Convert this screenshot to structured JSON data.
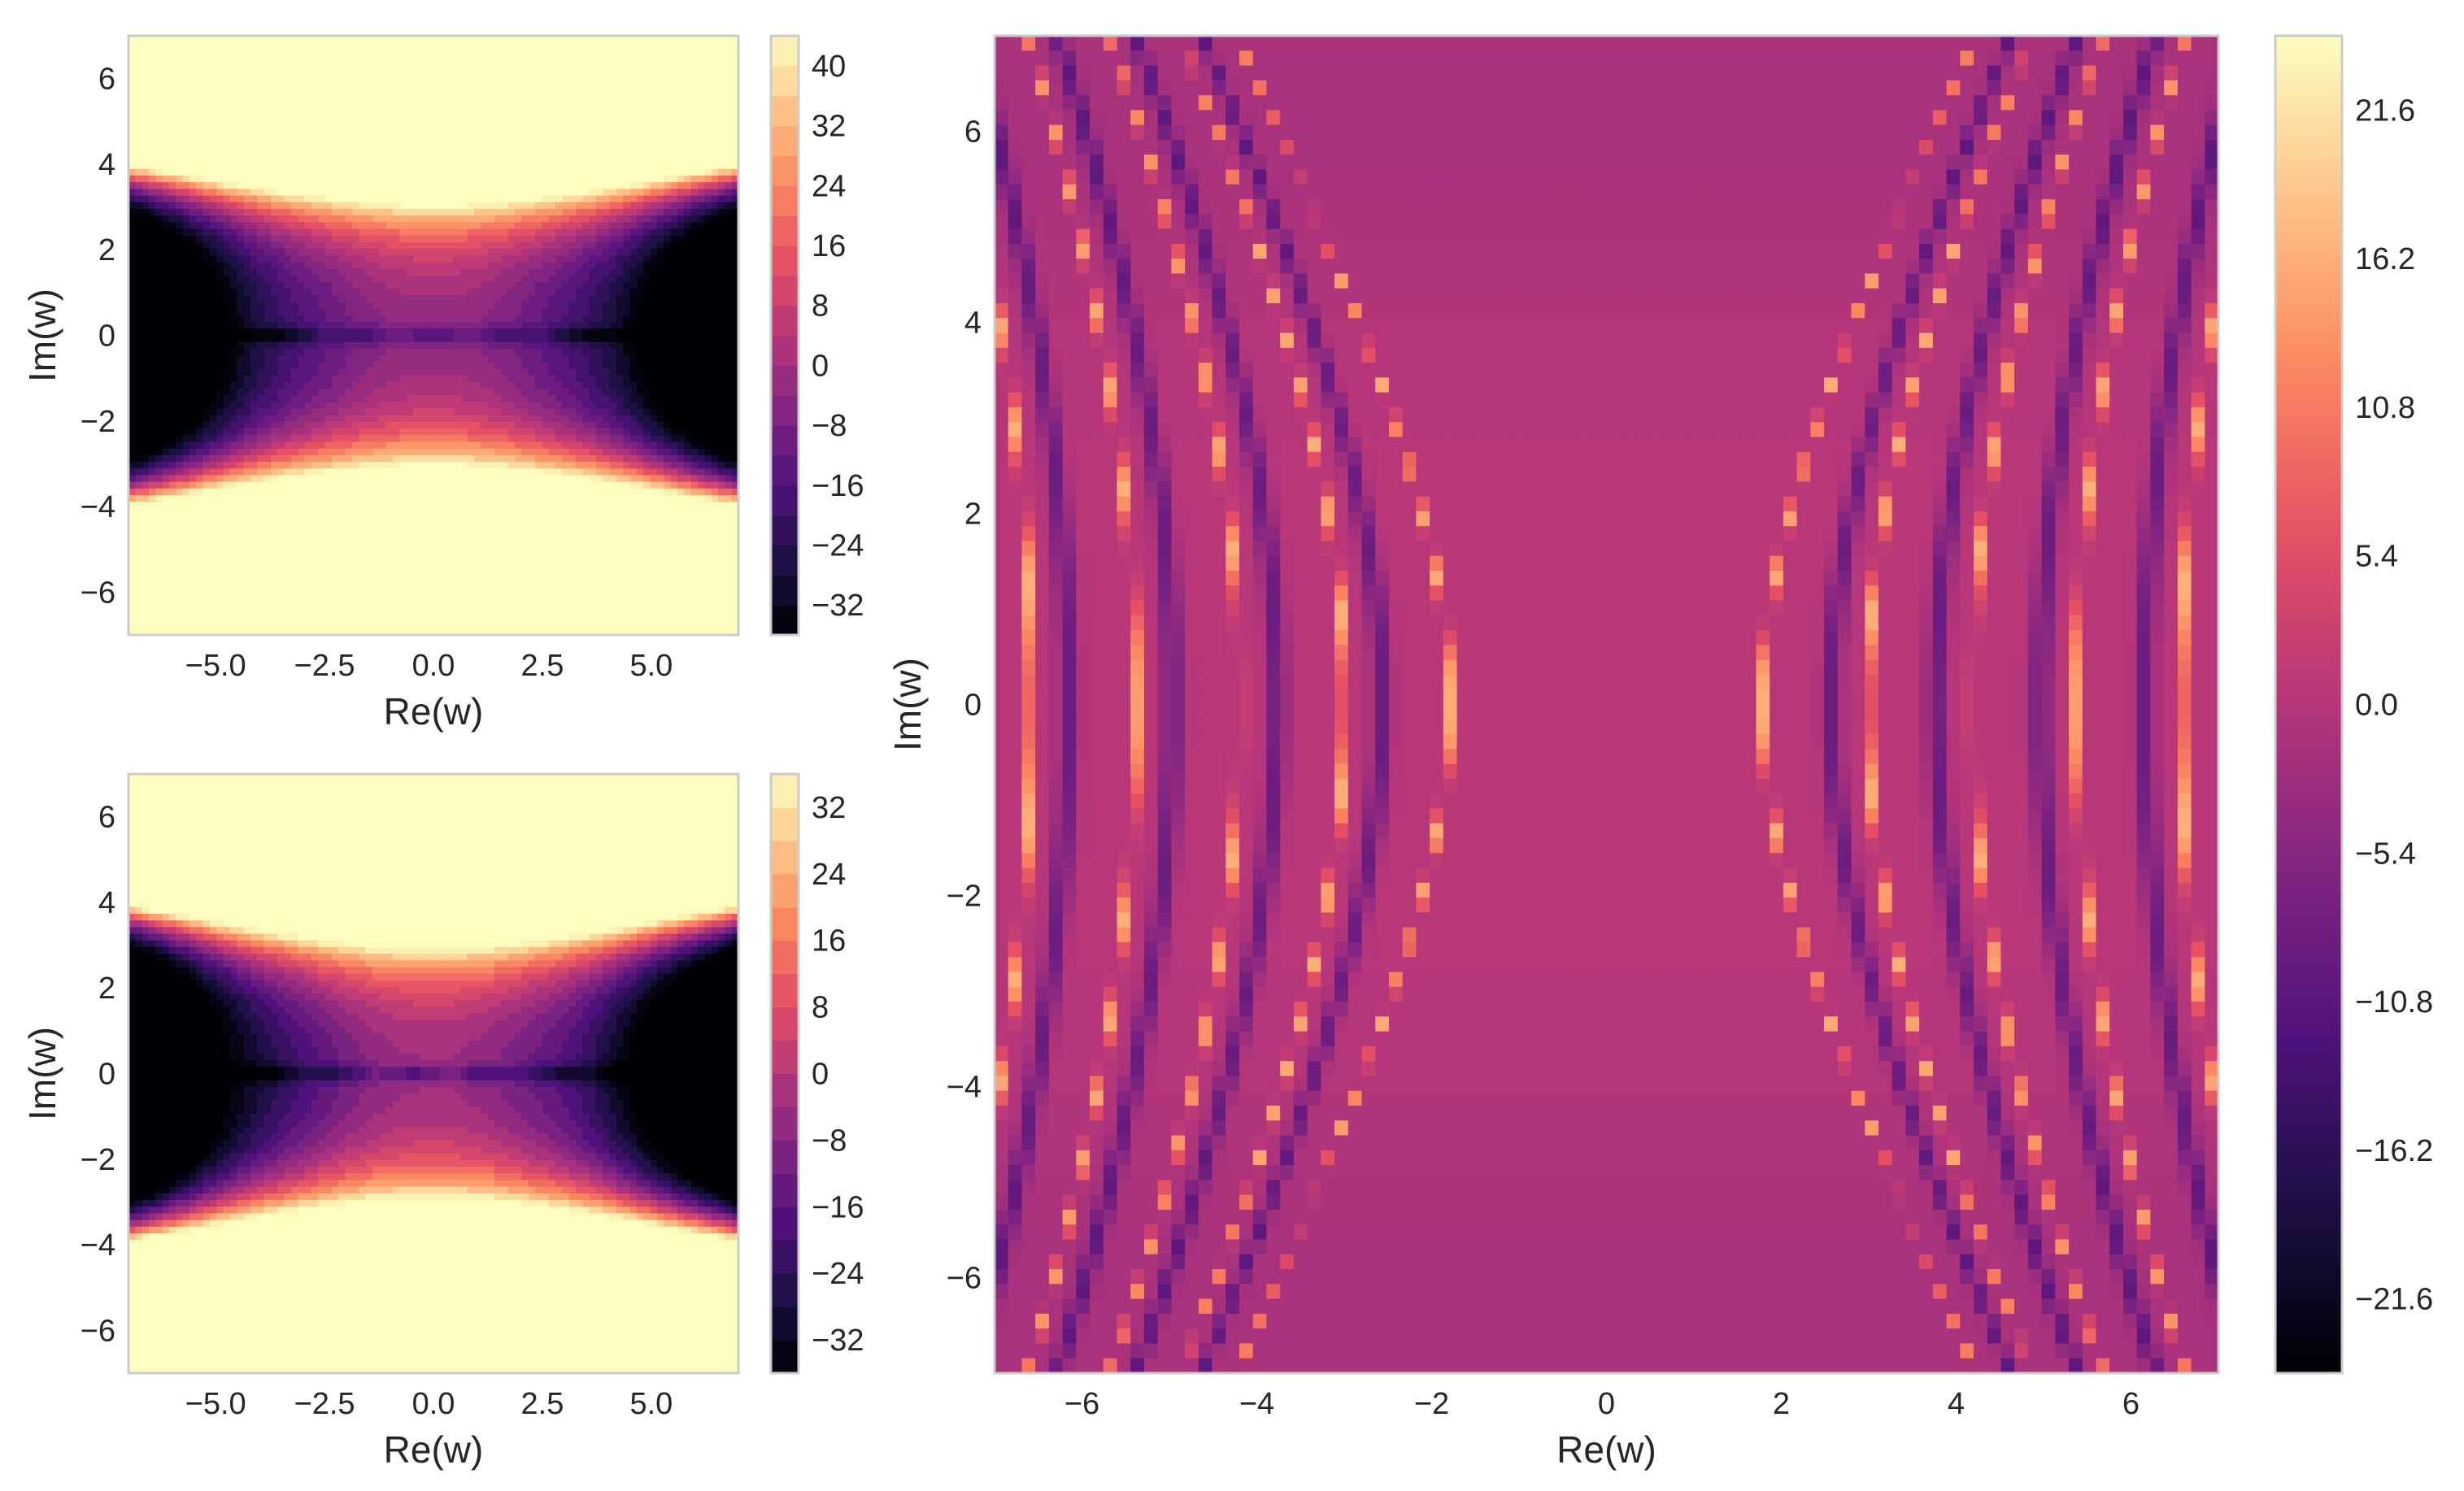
{
  "chart_data": [
    {
      "type": "heatmap",
      "panel": "top-left",
      "kind": "filled-contour",
      "xlabel": "Re(w)",
      "ylabel": "Im(w)",
      "xlim": [
        -7,
        7
      ],
      "ylim": [
        -7,
        7
      ],
      "xticks": [
        -5.0,
        -2.5,
        0.0,
        2.5,
        5.0
      ],
      "xtick_labels": [
        "−5.0",
        "−2.5",
        "0.0",
        "2.5",
        "5.0"
      ],
      "yticks": [
        -6,
        -4,
        -2,
        0,
        2,
        4,
        6
      ],
      "ytick_labels": [
        "−6",
        "−4",
        "−2",
        "0",
        "2",
        "4",
        "6"
      ],
      "colormap": "magma",
      "colorbar": {
        "range": [
          -36,
          44
        ],
        "levels_step": 4,
        "ticks": [
          -32,
          -24,
          -16,
          -8,
          0,
          8,
          16,
          24,
          32,
          40
        ],
        "tick_labels": [
          "−32",
          "−24",
          "−16",
          "−8",
          "0",
          "8",
          "16",
          "24",
          "32",
          "40"
        ]
      },
      "grid": false
    },
    {
      "type": "heatmap",
      "panel": "bottom-left",
      "kind": "filled-contour",
      "xlabel": "Re(w)",
      "ylabel": "Im(w)",
      "xlim": [
        -7,
        7
      ],
      "ylim": [
        -7,
        7
      ],
      "xticks": [
        -5.0,
        -2.5,
        0.0,
        2.5,
        5.0
      ],
      "xtick_labels": [
        "−5.0",
        "−2.5",
        "0.0",
        "2.5",
        "5.0"
      ],
      "yticks": [
        -6,
        -4,
        -2,
        0,
        2,
        4,
        6
      ],
      "ytick_labels": [
        "−6",
        "−4",
        "−2",
        "0",
        "2",
        "4",
        "6"
      ],
      "colormap": "magma",
      "colorbar": {
        "range": [
          -36,
          36
        ],
        "levels_step": 4,
        "ticks": [
          -32,
          -24,
          -16,
          -8,
          0,
          8,
          16,
          24,
          32
        ],
        "tick_labels": [
          "−32",
          "−24",
          "−16",
          "−8",
          "0",
          "8",
          "16",
          "24",
          "32"
        ]
      },
      "grid": false
    },
    {
      "type": "heatmap",
      "panel": "right",
      "kind": "continuous",
      "xlabel": "Re(w)",
      "ylabel": "Im(w)",
      "xlim": [
        -7,
        7
      ],
      "ylim": [
        -7,
        7
      ],
      "xticks": [
        -6,
        -4,
        -2,
        0,
        2,
        4,
        6
      ],
      "xtick_labels": [
        "−6",
        "−4",
        "−2",
        "0",
        "2",
        "4",
        "6"
      ],
      "yticks": [
        -6,
        -4,
        -2,
        0,
        2,
        4,
        6
      ],
      "ytick_labels": [
        "−6",
        "−4",
        "−2",
        "0",
        "2",
        "4",
        "6"
      ],
      "colormap": "magma",
      "colorbar": {
        "range": [
          -24.3,
          24.3
        ],
        "ticks": [
          -21.6,
          -16.2,
          -10.8,
          -5.4,
          0.0,
          5.4,
          10.8,
          16.2,
          21.6
        ],
        "tick_labels": [
          "−21.6",
          "−16.2",
          "−10.8",
          "−5.4",
          "0.0",
          "5.4",
          "10.8",
          "16.2",
          "21.6"
        ]
      },
      "grid": false
    }
  ],
  "colors": {
    "magma_stops": [
      "#000004",
      "#1c1044",
      "#4f127b",
      "#812581",
      "#b5367a",
      "#e55064",
      "#fb8761",
      "#fec287",
      "#fcfdbf"
    ],
    "frame": "#cccccc",
    "text": "#262626"
  }
}
